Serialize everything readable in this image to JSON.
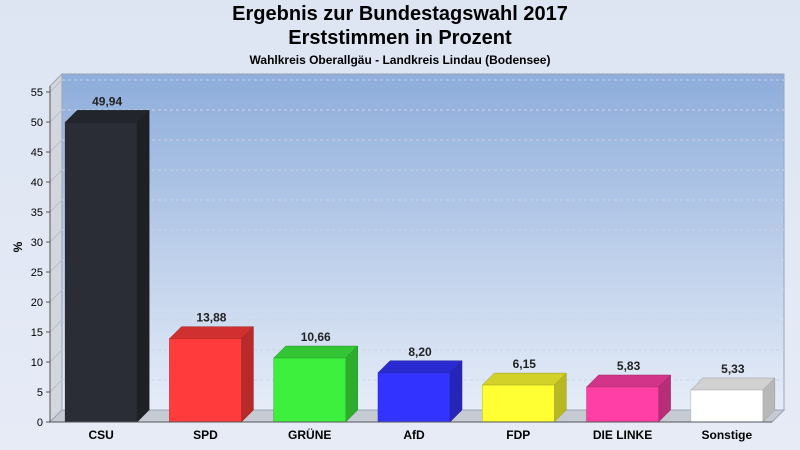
{
  "header": {
    "title_line1": "Ergebnis zur Bundestagswahl 2017",
    "title_line2": "Erststimmen in Prozent",
    "subtitle": "Wahlkreis Oberallgäu - Landkreis Lindau (Bodensee)"
  },
  "chart_data": {
    "type": "bar",
    "title": "Ergebnis zur Bundestagswahl 2017 Erststimmen in Prozent",
    "subtitle": "Wahlkreis Oberallgäu - Landkreis Lindau (Bodensee)",
    "xlabel": "",
    "ylabel": "%",
    "ylim": [
      0,
      58
    ],
    "yticks": [
      0,
      5,
      10,
      15,
      20,
      25,
      30,
      35,
      40,
      45,
      50,
      55
    ],
    "grid": true,
    "categories": [
      "CSU",
      "SPD",
      "GRÜNE",
      "AfD",
      "FDP",
      "DIE LINKE",
      "Sonstige"
    ],
    "values": [
      49.94,
      13.88,
      10.66,
      8.2,
      6.15,
      5.83,
      5.33
    ],
    "value_labels": [
      "49,94",
      "13,88",
      "10,66",
      "8,20",
      "6,15",
      "5,83",
      "5,33"
    ],
    "colors": [
      "#2a2d35",
      "#ff3b3b",
      "#3ef03e",
      "#3333ff",
      "#ffff33",
      "#ff3fa6",
      "#ffffff"
    ]
  }
}
